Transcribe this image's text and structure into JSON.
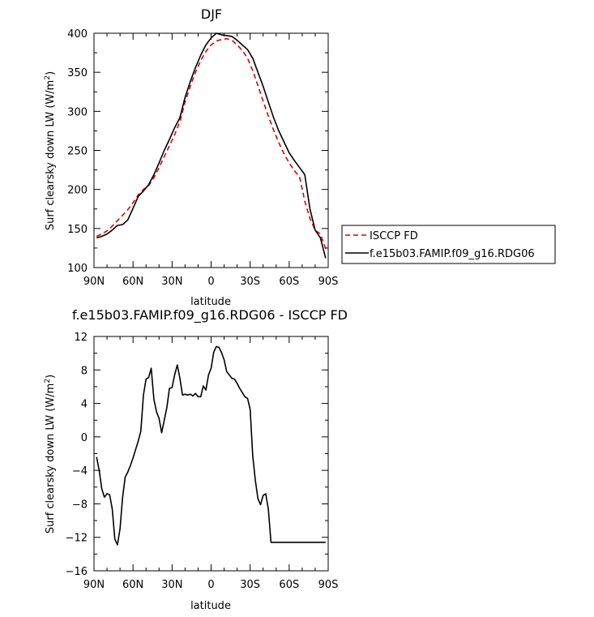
{
  "chart_data": [
    {
      "type": "line",
      "title": "DJF",
      "xlabel": "latitude",
      "ylabel": "Surf clearsky down LW (W/m²)",
      "ylabel_main": "Surf clearsky down LW (W/m",
      "ylabel_sup": "2",
      "ylabel_close": ")",
      "xlim": [
        90,
        -90
      ],
      "ylim": [
        100,
        400
      ],
      "xticks": [
        90,
        60,
        30,
        0,
        -30,
        -60,
        -90
      ],
      "xtick_labels": [
        "90N",
        "60N",
        "30N",
        "0",
        "30S",
        "60S",
        "90S"
      ],
      "yticks": [
        100,
        150,
        200,
        250,
        300,
        350,
        400
      ],
      "ytick_labels": [
        "100",
        "150",
        "200",
        "250",
        "300",
        "350",
        "400"
      ],
      "legend_position": "right",
      "series": [
        {
          "name": "ISCCP FD",
          "color": "#e00000",
          "dash": "dashed",
          "x": [
            88,
            84,
            80,
            76,
            72,
            68,
            64,
            60,
            56,
            52,
            48,
            44,
            40,
            36,
            32,
            28,
            24,
            20,
            16,
            12,
            8,
            4,
            0,
            -4,
            -8,
            -12,
            -16,
            -20,
            -24,
            -28,
            -32,
            -36,
            -40,
            -44,
            -48,
            -52,
            -56,
            -60,
            -64,
            -68,
            -72,
            -76,
            -80,
            -84,
            -88
          ],
          "y": [
            140,
            143,
            147,
            153,
            160,
            167,
            174,
            183,
            193,
            200,
            205,
            215,
            228,
            242,
            256,
            270,
            287,
            312,
            332,
            350,
            365,
            377,
            385,
            390,
            392,
            393,
            391,
            385,
            378,
            368,
            352,
            333,
            313,
            294,
            276,
            260,
            246,
            234,
            224,
            216,
            185,
            163,
            148,
            143,
            124
          ]
        },
        {
          "name": "f.e15b03.FAMIP.f09_g16.RDG06",
          "color": "#000000",
          "dash": "solid",
          "x": [
            88,
            84,
            80,
            76,
            72,
            68,
            64,
            60,
            56,
            52,
            48,
            44,
            40,
            36,
            32,
            28,
            24,
            20,
            16,
            12,
            8,
            4,
            0,
            -4,
            -8,
            -12,
            -16,
            -20,
            -24,
            -28,
            -32,
            -36,
            -40,
            -44,
            -48,
            -52,
            -56,
            -60,
            -64,
            -68,
            -72,
            -76,
            -80,
            -84,
            -88
          ],
          "y": [
            138,
            140,
            143,
            148,
            154,
            155,
            161,
            176,
            191,
            198,
            206,
            219,
            234,
            250,
            264,
            279,
            292,
            318,
            338,
            356,
            372,
            385,
            394,
            400,
            398,
            397,
            396,
            391,
            385,
            379,
            368,
            350,
            332,
            312,
            292,
            275,
            261,
            247,
            237,
            228,
            219,
            175,
            148,
            138,
            112
          ]
        }
      ]
    },
    {
      "type": "line",
      "title": "f.e15b03.FAMIP.f09_g16.RDG06 - ISCCP FD",
      "xlabel": "latitude",
      "ylabel": "Surf clearsky down LW (W/m²)",
      "ylabel_main": "Surf clearsky down LW (W/m",
      "ylabel_sup": "2",
      "ylabel_close": ")",
      "xlim": [
        90,
        -90
      ],
      "ylim": [
        -16,
        12
      ],
      "xticks": [
        90,
        60,
        30,
        0,
        -30,
        -60,
        -90
      ],
      "xtick_labels": [
        "90N",
        "60N",
        "30N",
        "0",
        "30S",
        "60S",
        "90S"
      ],
      "yticks": [
        -16,
        -12,
        -8,
        -4,
        0,
        4,
        8,
        12
      ],
      "ytick_labels": [
        "-16",
        "-12",
        "-8",
        "-4",
        "0",
        "4",
        "8",
        "12"
      ],
      "series": [
        {
          "color": "#000000",
          "dash": "solid",
          "x": [
            88,
            86,
            84,
            82,
            80,
            78,
            76,
            74,
            72,
            70,
            68,
            66,
            64,
            62,
            60,
            58,
            56,
            54,
            52,
            50,
            48,
            46,
            44,
            42,
            40,
            38,
            36,
            34,
            32,
            30,
            28,
            26,
            24,
            22,
            20,
            18,
            16,
            14,
            12,
            10,
            8,
            6,
            4,
            2,
            0,
            -2,
            -4,
            -6,
            -8,
            -10,
            -12,
            -14,
            -16,
            -18,
            -20,
            -22,
            -24,
            -26,
            -28,
            -30,
            -32,
            -34,
            -36,
            -38,
            -40,
            -42,
            -44,
            -46,
            -48,
            -50,
            -52,
            -54,
            -56,
            -58,
            -60,
            -62,
            -64,
            -66,
            -68,
            -70,
            -72,
            -74,
            -76,
            -78,
            -80,
            -82,
            -84,
            -86,
            -88
          ],
          "y": [
            -2.4,
            -4.0,
            -6.2,
            -7.2,
            -6.8,
            -6.9,
            -8.6,
            -12.2,
            -12.9,
            -11.0,
            -7.2,
            -4.8,
            -4.2,
            -3.4,
            -2.5,
            -1.5,
            -0.5,
            0.7,
            5.0,
            6.9,
            7.1,
            8.2,
            4.5,
            3.0,
            2.2,
            0.5,
            2.0,
            3.5,
            5.8,
            5.9,
            7.4,
            8.6,
            7.0,
            5.0,
            5.1,
            5.0,
            5.1,
            4.9,
            5.2,
            4.8,
            4.8,
            6.1,
            5.6,
            7.4,
            8.2,
            10.1,
            10.8,
            10.7,
            10.1,
            9.2,
            7.8,
            7.4,
            7.0,
            6.9,
            6.4,
            5.8,
            5.3,
            4.8,
            4.6,
            3.3,
            -2.3,
            -5.2,
            -7.4,
            -8.1,
            -7.0,
            -6.8,
            -8.6,
            -12.6,
            -12.6,
            -12.6,
            -12.6,
            -12.6,
            -12.6,
            -12.6,
            -12.6,
            -12.6,
            -12.6,
            -12.6,
            -12.6,
            -12.6,
            -12.6,
            -12.6,
            -12.6,
            -12.6,
            -12.6,
            -12.6,
            -12.6,
            -12.6,
            -12.6
          ]
        }
      ]
    }
  ]
}
